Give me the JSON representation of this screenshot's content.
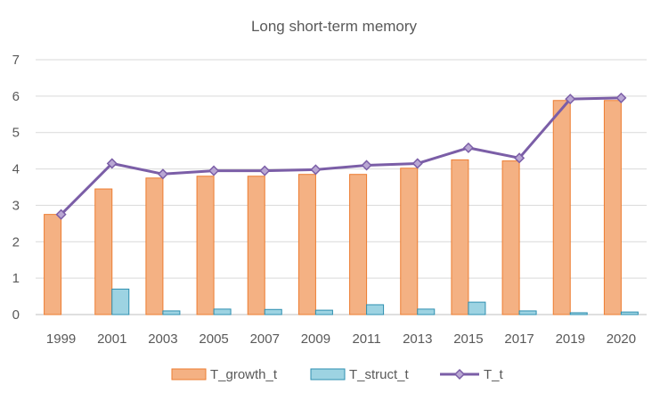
{
  "chart_data": {
    "type": "bar",
    "title": "Long short-term memory",
    "categories": [
      "1999",
      "2001",
      "2003",
      "2005",
      "2007",
      "2009",
      "2011",
      "2013",
      "2015",
      "2017",
      "2019",
      "2020"
    ],
    "ylim": [
      0,
      7
    ],
    "yticks": [
      "0",
      "1",
      "2",
      "3",
      "4",
      "5",
      "6",
      "7"
    ],
    "grid": true,
    "legend_position": "bottom",
    "series": [
      {
        "name": "T_growth_t",
        "kind": "bar",
        "color": "#f4b183",
        "stroke": "#ed7d31",
        "values": [
          2.75,
          3.45,
          3.75,
          3.8,
          3.8,
          3.85,
          3.85,
          4.02,
          4.25,
          4.22,
          5.88,
          5.88
        ]
      },
      {
        "name": "T_struct_t",
        "kind": "bar",
        "color": "#9dd3e2",
        "stroke": "#2e8fb0",
        "values": [
          0.0,
          0.7,
          0.1,
          0.15,
          0.14,
          0.12,
          0.27,
          0.15,
          0.34,
          0.1,
          0.05,
          0.07
        ]
      },
      {
        "name": "T_t",
        "kind": "line",
        "color": "#7b5ea7",
        "marker": "diamond",
        "values": [
          2.75,
          4.15,
          3.86,
          3.95,
          3.95,
          3.98,
          4.1,
          4.15,
          4.58,
          4.3,
          5.92,
          5.95
        ]
      }
    ]
  }
}
